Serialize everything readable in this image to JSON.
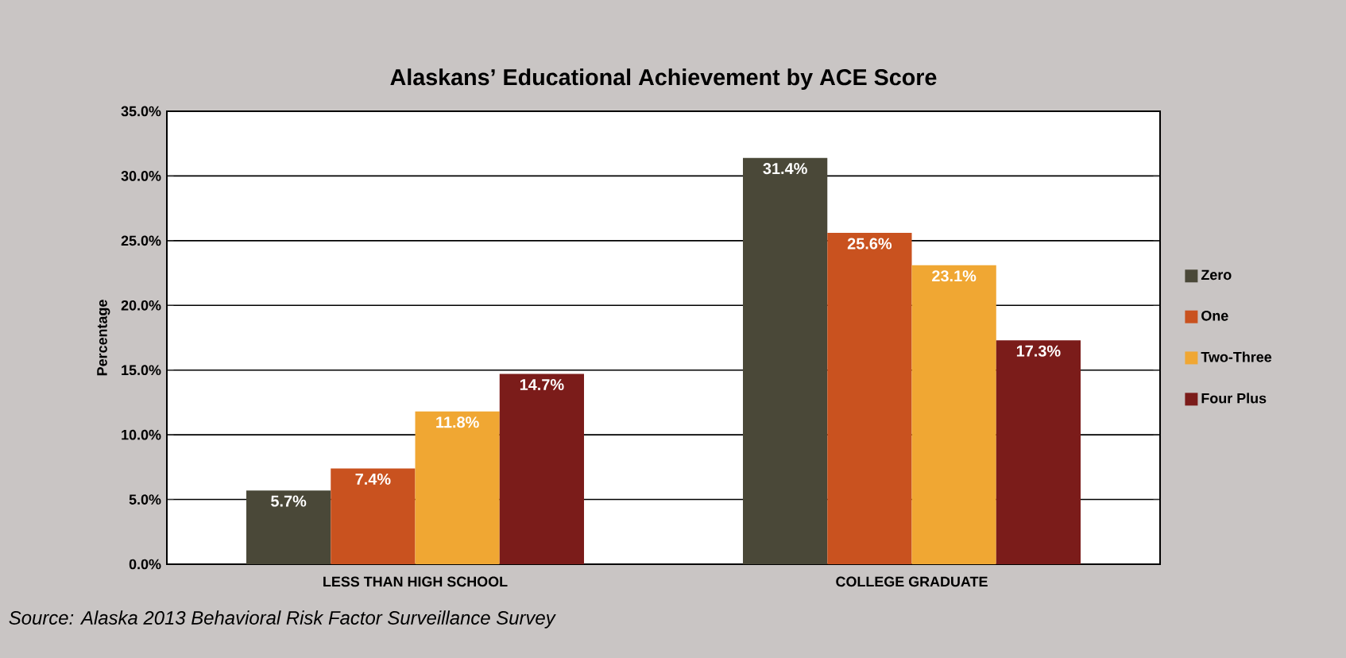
{
  "chart_data": {
    "type": "bar",
    "title": "Alaskans’ Educational Achievement by ACE Score",
    "ylabel": "Percentage",
    "categories": [
      "LESS THAN HIGH SCHOOL",
      "COLLEGE GRADUATE"
    ],
    "series": [
      {
        "name": "Zero",
        "color": "#4a4838",
        "values": [
          5.7,
          31.4
        ],
        "value_labels": [
          "5.7%",
          "31.4%"
        ]
      },
      {
        "name": "One",
        "color": "#c9521f",
        "values": [
          7.4,
          25.6
        ],
        "value_labels": [
          "7.4%",
          "25.6%"
        ]
      },
      {
        "name": "Two-Three",
        "color": "#f0a733",
        "values": [
          11.8,
          23.1
        ],
        "value_labels": [
          "11.8%",
          "23.1%"
        ]
      },
      {
        "name": "Four Plus",
        "color": "#7b1c1a",
        "values": [
          14.7,
          17.3
        ],
        "value_labels": [
          "14.7%",
          "17.3%"
        ]
      }
    ],
    "ylim": [
      0,
      35
    ],
    "yticks": [
      {
        "value": 0,
        "label": "0.0%"
      },
      {
        "value": 5,
        "label": "5.0%"
      },
      {
        "value": 10,
        "label": "10.0%"
      },
      {
        "value": 15,
        "label": "15.0%"
      },
      {
        "value": 20,
        "label": "20.0%"
      },
      {
        "value": 25,
        "label": "25.0%"
      },
      {
        "value": 30,
        "label": "30.0%"
      },
      {
        "value": 35,
        "label": "35.0%"
      }
    ],
    "grid": "y",
    "legend": "right",
    "annotations": [
      "Source: Alaska 2013 Behavioral Risk Factor Surveillance Survey"
    ]
  }
}
